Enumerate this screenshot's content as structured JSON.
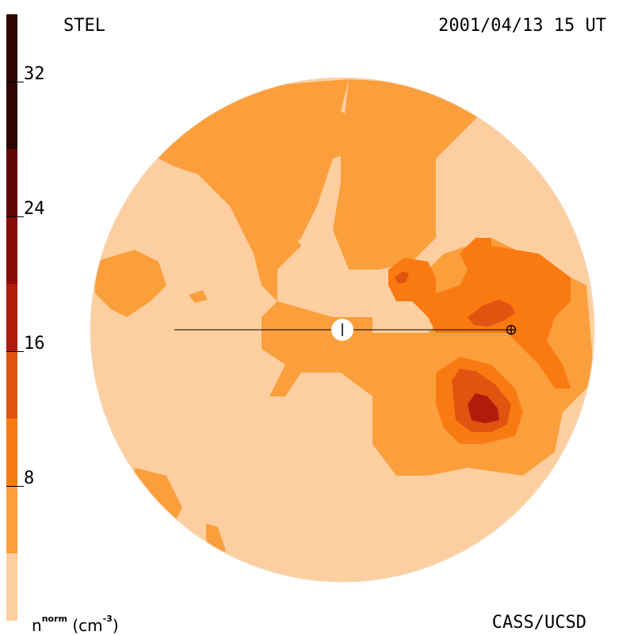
{
  "header": {
    "left": "STEL",
    "right": "2001/04/13 15 UT"
  },
  "footer": {
    "units_base": "n",
    "units_sup": "norm",
    "units_paren": "(cm",
    "units_exp": "-3",
    "units_close": ")",
    "credit": "CASS/UCSD"
  },
  "colors": {
    "level1": "#fdcfa0",
    "level2": "#fb9e3c",
    "level3": "#fa7a12",
    "level4": "#e05410",
    "level5": "#b01c0c",
    "level6": "#8a0a08",
    "level7": "#600606",
    "level8": "#2e0505"
  },
  "chart_data": {
    "type": "heatmap",
    "title": "STEL 2001/04/13 15 UT",
    "colorbar": {
      "label": "n^norm (cm^-3)",
      "range": [
        0,
        36
      ],
      "ticks": [
        8,
        16,
        24,
        32
      ],
      "levels": [
        0,
        4,
        8,
        12,
        16,
        20,
        24,
        28,
        32,
        36
      ]
    },
    "markers": [
      "Sun (center)",
      "Earth (⊕)"
    ]
  }
}
